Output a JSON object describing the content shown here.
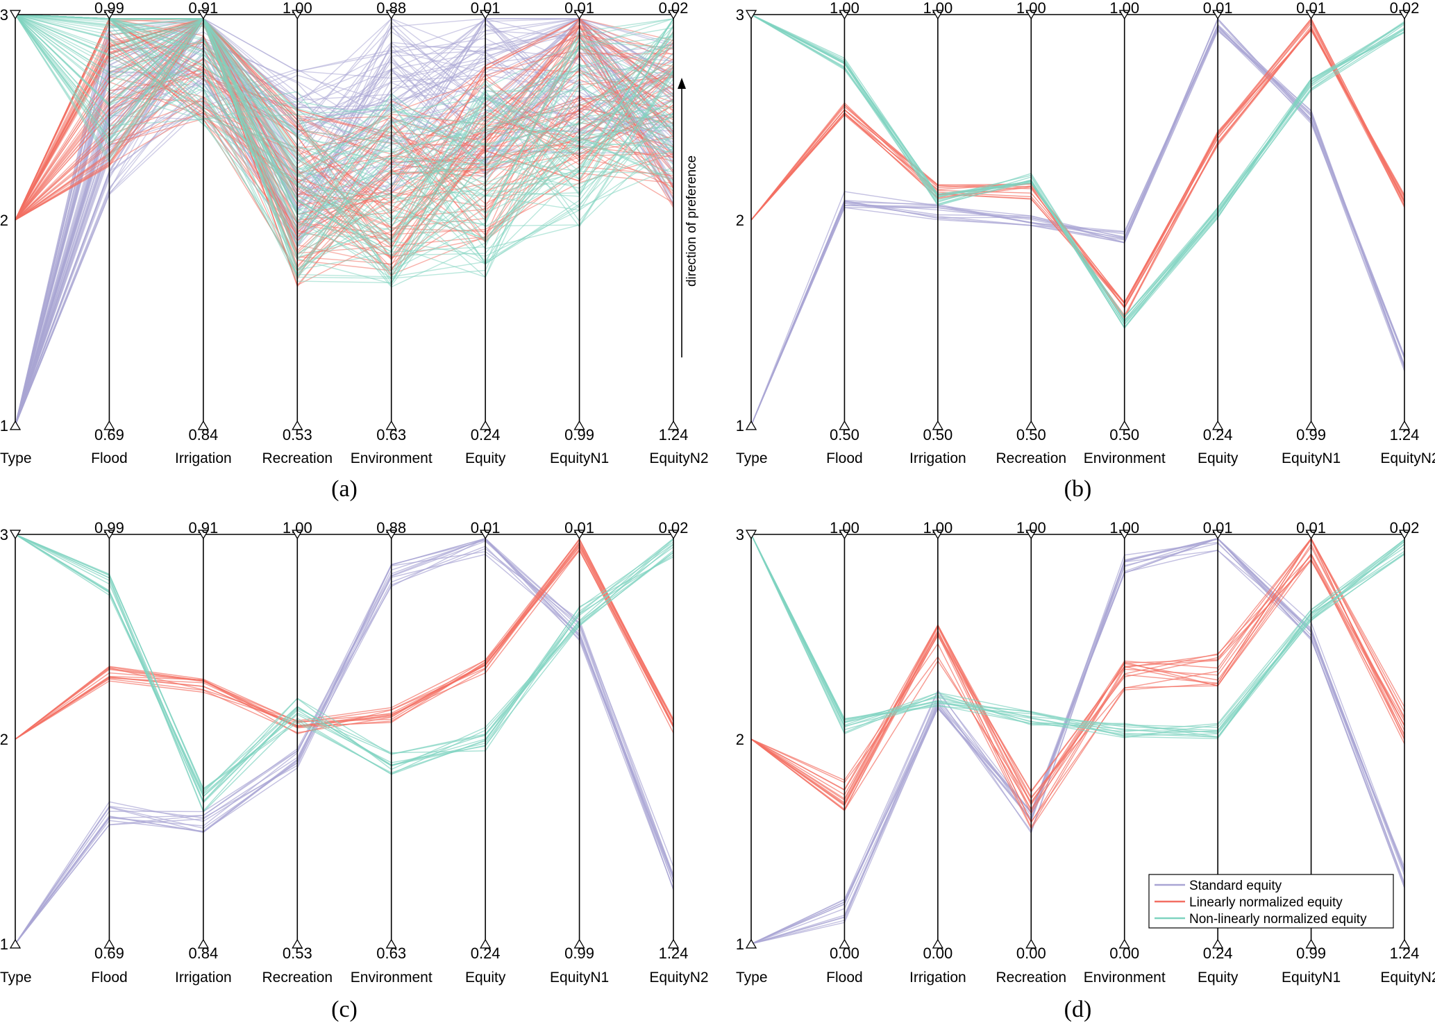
{
  "figure": {
    "legend": {
      "items": [
        {
          "label": "Standard equity",
          "color": "#a9a5d4"
        },
        {
          "label": "Linearly normalized equity",
          "color": "#f36f62"
        },
        {
          "label": "Non-linearly normalized equity",
          "color": "#7fd3c0"
        }
      ]
    },
    "direction_label": "direction of preference"
  },
  "chart_data": [
    {
      "type": "parallel-coordinates",
      "panel_label": "(a)",
      "axes": [
        "Type",
        "Flood",
        "Irrigation",
        "Recreation",
        "Environment",
        "Equity",
        "EquityN1",
        "EquityN2"
      ],
      "type_axis_ticks": [
        "1",
        "2",
        "3"
      ],
      "top_labels": [
        "",
        "0.99",
        "0.91",
        "1.00",
        "0.88",
        "0.01",
        "0.01",
        "0.02"
      ],
      "bottom_labels": [
        "",
        "0.69",
        "0.84",
        "0.53",
        "0.63",
        "0.24",
        "0.99",
        "1.24"
      ],
      "groups": [
        {
          "name": "Standard equity",
          "color": "#a9a5d4",
          "lines": 70,
          "spread": 0.22,
          "profile": [
            1.0,
            0.78,
            0.95,
            0.65,
            0.78,
            0.82,
            0.88,
            0.72
          ]
        },
        {
          "name": "Linearly normalized equity",
          "color": "#f36f62",
          "lines": 70,
          "spread": 0.22,
          "profile": [
            2.0,
            0.85,
            0.96,
            0.55,
            0.58,
            0.66,
            0.8,
            0.75
          ]
        },
        {
          "name": "Non-linearly normalized equity",
          "color": "#7fd3c0",
          "lines": 70,
          "spread": 0.24,
          "profile": [
            3.0,
            0.88,
            0.97,
            0.58,
            0.57,
            0.6,
            0.72,
            0.8
          ]
        }
      ]
    },
    {
      "type": "parallel-coordinates",
      "panel_label": "(b)",
      "axes": [
        "Type",
        "Flood",
        "Irrigation",
        "Recreation",
        "Environment",
        "Equity",
        "EquityN1",
        "EquityN2"
      ],
      "type_axis_ticks": [
        "1",
        "2",
        "3"
      ],
      "top_labels": [
        "",
        "1.00",
        "1.00",
        "1.00",
        "1.00",
        "0.01",
        "0.01",
        "0.02"
      ],
      "bottom_labels": [
        "",
        "0.50",
        "0.50",
        "0.50",
        "0.50",
        "0.24",
        "0.99",
        "1.24"
      ],
      "groups": [
        {
          "name": "Standard equity",
          "color": "#a9a5d4",
          "lines": 12,
          "spread": 0.02,
          "profile": [
            1.0,
            0.55,
            0.52,
            0.5,
            0.46,
            0.98,
            0.75,
            0.15
          ]
        },
        {
          "name": "Linearly normalized equity",
          "color": "#f36f62",
          "lines": 12,
          "spread": 0.02,
          "profile": [
            2.0,
            0.77,
            0.57,
            0.57,
            0.28,
            0.7,
            0.98,
            0.55
          ]
        },
        {
          "name": "Non-linearly normalized equity",
          "color": "#7fd3c0",
          "lines": 12,
          "spread": 0.015,
          "profile": [
            3.0,
            0.88,
            0.55,
            0.6,
            0.25,
            0.52,
            0.83,
            0.97
          ]
        }
      ]
    },
    {
      "type": "parallel-coordinates",
      "panel_label": "(c)",
      "axes": [
        "Type",
        "Flood",
        "Irrigation",
        "Recreation",
        "Environment",
        "Equity",
        "EquityN1",
        "EquityN2"
      ],
      "type_axis_ticks": [
        "1",
        "2",
        "3"
      ],
      "top_labels": [
        "",
        "0.99",
        "0.91",
        "1.00",
        "0.88",
        "0.01",
        "0.01",
        "0.02"
      ],
      "bottom_labels": [
        "",
        "0.69",
        "0.84",
        "0.53",
        "0.63",
        "0.24",
        "0.99",
        "1.24"
      ],
      "groups": [
        {
          "name": "Standard equity",
          "color": "#a9a5d4",
          "lines": 12,
          "spread": 0.03,
          "profile": [
            1.0,
            0.32,
            0.3,
            0.45,
            0.9,
            0.98,
            0.77,
            0.16
          ]
        },
        {
          "name": "Linearly normalized equity",
          "color": "#f36f62",
          "lines": 12,
          "spread": 0.02,
          "profile": [
            2.0,
            0.66,
            0.63,
            0.53,
            0.56,
            0.68,
            0.98,
            0.53
          ]
        },
        {
          "name": "Non-linearly normalized equity",
          "color": "#7fd3c0",
          "lines": 12,
          "spread": 0.03,
          "profile": [
            3.0,
            0.88,
            0.35,
            0.57,
            0.44,
            0.5,
            0.8,
            0.97
          ]
        }
      ]
    },
    {
      "type": "parallel-coordinates",
      "panel_label": "(d)",
      "axes": [
        "Type",
        "Flood",
        "Irrigation",
        "Recreation",
        "Environment",
        "Equity",
        "EquityN1",
        "EquityN2"
      ],
      "type_axis_ticks": [
        "1",
        "2",
        "3"
      ],
      "top_labels": [
        "",
        "1.00",
        "1.00",
        "1.00",
        "1.00",
        "0.01",
        "0.01",
        "0.02"
      ],
      "bottom_labels": [
        "",
        "0.00",
        "0.00",
        "0.00",
        "0.00",
        "0.24",
        "0.99",
        "1.24"
      ],
      "groups": [
        {
          "name": "Standard equity",
          "color": "#a9a5d4",
          "lines": 12,
          "spread": 0.03,
          "profile": [
            1.0,
            0.08,
            0.6,
            0.3,
            0.93,
            0.98,
            0.77,
            0.16
          ]
        },
        {
          "name": "Linearly normalized equity",
          "color": "#f36f62",
          "lines": 14,
          "spread": 0.05,
          "profile": [
            2.0,
            0.35,
            0.73,
            0.33,
            0.67,
            0.68,
            0.98,
            0.53
          ]
        },
        {
          "name": "Non-linearly normalized equity",
          "color": "#7fd3c0",
          "lines": 12,
          "spread": 0.02,
          "profile": [
            3.0,
            0.53,
            0.6,
            0.55,
            0.52,
            0.52,
            0.8,
            0.97
          ]
        }
      ]
    }
  ]
}
